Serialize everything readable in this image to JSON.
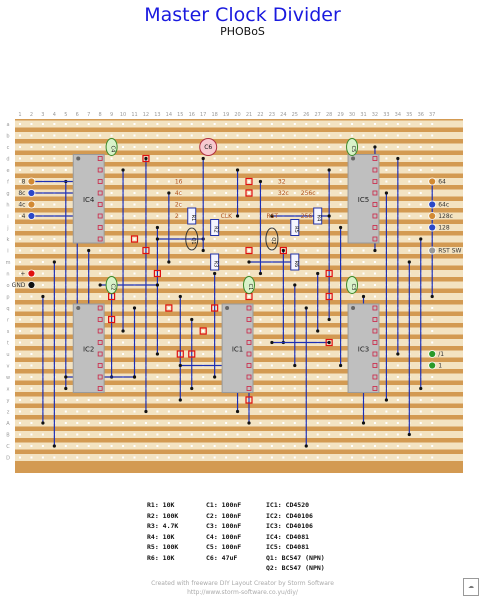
{
  "title": "Master Clock Divider",
  "subtitle": "PHOBoS",
  "grid": {
    "cols": 37,
    "row_labels": [
      "a",
      "b",
      "c",
      "d",
      "e",
      "f",
      "g",
      "h",
      "i",
      "j",
      "k",
      "l",
      "m",
      "n",
      "o",
      "p",
      "q",
      "r",
      "s",
      "t",
      "u",
      "v",
      "w",
      "x",
      "y",
      "z",
      "A",
      "B",
      "C",
      "D"
    ]
  },
  "colors": {
    "board": "#d39a52",
    "strip": "#f3e3c2",
    "hole": "#ffffff",
    "wire": "#1d2fb3",
    "ic": "#bfbfbf",
    "link": "#e01010",
    "label_text": "#b0501a"
  },
  "ics": [
    {
      "name": "IC4",
      "col": 5,
      "row": 3,
      "pins": 16
    },
    {
      "name": "IC2",
      "col": 5,
      "row": 16,
      "pins": 16
    },
    {
      "name": "IC1",
      "col": 18,
      "row": 16,
      "pins": 16
    },
    {
      "name": "IC5",
      "col": 29,
      "row": 3,
      "pins": 16
    },
    {
      "name": "IC3",
      "col": 29,
      "row": 16,
      "pins": 16
    }
  ],
  "resistors": [
    {
      "name": "R1",
      "col": 15,
      "row": 8
    },
    {
      "name": "R2",
      "col": 17,
      "row": 9
    },
    {
      "name": "R3",
      "col": 17,
      "row": 12
    },
    {
      "name": "R4",
      "col": 26,
      "row": 8
    },
    {
      "name": "R5",
      "col": 24,
      "row": 9
    },
    {
      "name": "R6",
      "col": 24,
      "row": 12
    }
  ],
  "transistors": [
    {
      "name": "Q1",
      "col": 15,
      "row": 10
    },
    {
      "name": "Q2",
      "col": 22,
      "row": 10
    }
  ],
  "capacitors": [
    {
      "name": "C4",
      "col": 8,
      "row": 2
    },
    {
      "name": "C5",
      "col": 29,
      "row": 2
    },
    {
      "name": "C2",
      "col": 8,
      "row": 14
    },
    {
      "name": "C1",
      "col": 20,
      "row": 14
    },
    {
      "name": "C3",
      "col": 29,
      "row": 14
    }
  ],
  "electrolytic": {
    "name": "C6",
    "col": 16,
    "row": 2
  },
  "board_labels": [
    {
      "text": "16",
      "col": 13,
      "row": 5
    },
    {
      "text": "2c",
      "col": 13,
      "row": 7
    },
    {
      "text": "2",
      "col": 13,
      "row": 8
    },
    {
      "text": "CLK",
      "col": 17,
      "row": 8
    },
    {
      "text": "RST",
      "col": 21,
      "row": 8
    },
    {
      "text": "32",
      "col": 22,
      "row": 5
    },
    {
      "text": "32c",
      "col": 22,
      "row": 6
    },
    {
      "text": "256c",
      "col": 24,
      "row": 6
    },
    {
      "text": "256",
      "col": 24,
      "row": 8
    },
    {
      "text": "4c",
      "col": 13,
      "row": 6
    }
  ],
  "side_labels_left": [
    {
      "text": "8",
      "row": 5
    },
    {
      "text": "8c",
      "row": 6
    },
    {
      "text": "4c",
      "row": 7
    },
    {
      "text": "4",
      "row": 8
    },
    {
      "text": "+",
      "row": 13
    },
    {
      "text": "GND",
      "row": 14
    }
  ],
  "side_labels_right": [
    {
      "text": "64",
      "row": 5
    },
    {
      "text": "64c",
      "row": 7
    },
    {
      "text": "128c",
      "row": 8
    },
    {
      "text": "128",
      "row": 9
    },
    {
      "text": "RST SW",
      "row": 11
    },
    {
      "text": "/1",
      "row": 20
    },
    {
      "text": "1",
      "row": 21
    }
  ],
  "legend": {
    "resistors": [
      "R1: 10K",
      "R2: 100K",
      "R3: 4.7K",
      "R4: 10K",
      "R5: 100K",
      "R6: 10K"
    ],
    "capacitors": [
      "C1: 100nF",
      "C2: 100nF",
      "C3: 100nF",
      "C4: 100nF",
      "C5: 100nF",
      "C6: 47uF"
    ],
    "ics": [
      "IC1: CD4520",
      "IC2: CD40106",
      "IC3: CD40106",
      "IC4: CD4081",
      "IC5: CD4081",
      "Q1: BC547 (NPN)",
      "Q2: BC547 (NPN)"
    ]
  },
  "footer": {
    "line1": "Created with freeware DIY Layout Creator by Storm Software",
    "line2": "http://www.storm-software.co.yu/diy/"
  }
}
